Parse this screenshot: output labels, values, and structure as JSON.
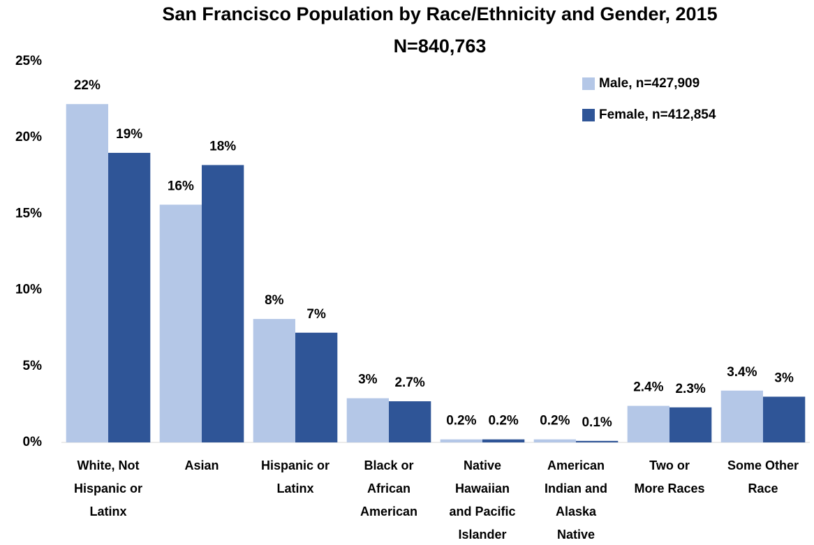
{
  "chart_data": {
    "type": "bar",
    "title": "San Francisco Population by Race/Ethnicity and Gender, 2015",
    "subtitle": "N=840,763",
    "categories": [
      "White, Not\nHispanic or\nLatinx",
      "Asian",
      "Hispanic or\nLatinx",
      "Black or\nAfrican\nAmerican",
      "Native\nHawaiian\nand Pacific\nIslander",
      "American\nIndian and\nAlaska\nNative",
      "Two or\nMore Races",
      "Some Other\nRace"
    ],
    "series": [
      {
        "name": "Male, n=427,909",
        "color": "#b4c7e7",
        "values": [
          22.2,
          15.6,
          8.1,
          2.9,
          0.2,
          0.2,
          2.4,
          3.4
        ],
        "value_labels": [
          "22%",
          "16%",
          "8%",
          "3%",
          "0.2%",
          "0.2%",
          "2.4%",
          "3.4%"
        ]
      },
      {
        "name": "Female, n=412,854",
        "color": "#2f5597",
        "values": [
          19.0,
          18.2,
          7.2,
          2.7,
          0.2,
          0.1,
          2.3,
          3.0
        ],
        "value_labels": [
          "19%",
          "18%",
          "7%",
          "2.7%",
          "0.2%",
          "0.1%",
          "2.3%",
          "3%"
        ]
      }
    ],
    "ylim": [
      0,
      25
    ],
    "yticks": [
      {
        "value": 0,
        "label": "0%"
      },
      {
        "value": 5,
        "label": "5%"
      },
      {
        "value": 10,
        "label": "10%"
      },
      {
        "value": 15,
        "label": "15%"
      },
      {
        "value": 20,
        "label": "20%"
      },
      {
        "value": 25,
        "label": "25%"
      }
    ],
    "grid": false,
    "legend": "top-right"
  }
}
